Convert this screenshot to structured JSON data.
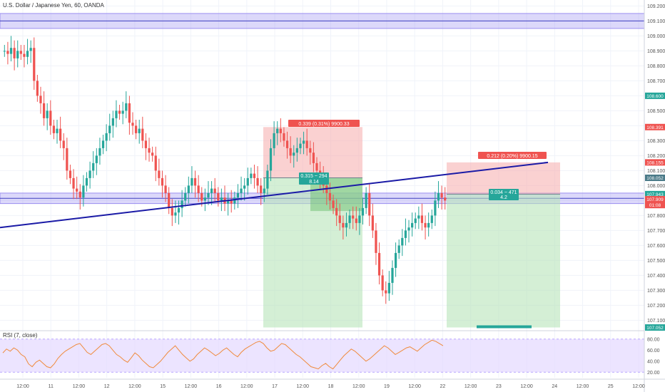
{
  "header": {
    "title": "U.S. Dollar / Japanese Yen, 60, OANDA"
  },
  "rsi": {
    "title": "RSI (7, close)",
    "levels": [
      "80.00",
      "60.00",
      "40.00",
      "20.00"
    ],
    "ticks": [
      80,
      60,
      40,
      20
    ]
  },
  "price_axis": {
    "labels": [
      "109.200",
      "109.100",
      "109.000",
      "108.900",
      "108.800",
      "108.700",
      "108.600",
      "108.500",
      "108.400",
      "108.300",
      "108.200",
      "108.100",
      "108.000",
      "107.900",
      "107.800",
      "107.700",
      "107.600",
      "107.500",
      "107.400",
      "107.300",
      "107.200",
      "107.100"
    ],
    "badges": [
      {
        "text": "108.600",
        "color": "#26a69a"
      },
      {
        "text": "108.391",
        "color": "#ef5350"
      },
      {
        "text": "108.155",
        "color": "#ef5350"
      },
      {
        "text": "108.052",
        "color": "#4a7a88"
      },
      {
        "text": "107.943",
        "color": "#26a69a"
      },
      {
        "text": "107.909",
        "color": "#ef5350"
      },
      {
        "text": "01:08",
        "color": "#ef5350"
      },
      {
        "text": "107.052",
        "color": "#26a69a"
      }
    ]
  },
  "time_axis": {
    "labels": [
      "12:00",
      "11",
      "12:00",
      "12",
      "12:00",
      "15",
      "12:00",
      "16",
      "12:00",
      "17",
      "12:00",
      "18",
      "12:00",
      "19",
      "12:00",
      "22",
      "12:00",
      "23",
      "12:00",
      "24",
      "12:00",
      "25",
      "12:00"
    ]
  },
  "position_labels": [
    {
      "text": "0.339 (0.31%) 9900.33",
      "color": "#ef5350"
    },
    {
      "text": "0.315 ~ 294",
      "color": "#26a69a"
    },
    {
      "text": "8.14",
      "color": "#26a69a"
    },
    {
      "text": "0.212 (0.20%) 9900.15",
      "color": "#ef5350"
    },
    {
      "text": "0.034 ~ 471",
      "color": "#26a69a"
    },
    {
      "text": "4.2",
      "color": "#26a69a"
    }
  ],
  "colors": {
    "up": "#26a69a",
    "down": "#ef5350",
    "trendline": "#1a1aa6",
    "zone": "#9c8ff0",
    "rsi_line": "#f08a3c",
    "rsi_band": "#e4d8ff",
    "stop_zone": "#f6b3b3",
    "target_zone": "#b7e4b9"
  },
  "chart_data": {
    "type": "candlestick",
    "symbol": "U.S. Dollar / Japanese Yen",
    "interval": "60",
    "source": "OANDA",
    "ylim": [
      107.04,
      109.24
    ],
    "zones": [
      {
        "from": 109.05,
        "to": 109.15
      },
      {
        "from": 107.88,
        "to": 107.95
      }
    ],
    "trendline": [
      {
        "t": 0,
        "p": 107.72
      },
      {
        "t": 1,
        "p": 108.155
      }
    ],
    "positions": [
      {
        "entry": 108.052,
        "stop": 108.391,
        "target": 107.052,
        "pnl": 107.83
      },
      {
        "entry": 107.943,
        "stop": 108.155,
        "target": 107.052
      }
    ],
    "close_path": [
      108.9,
      108.88,
      108.92,
      108.85,
      108.9,
      108.88,
      108.86,
      108.9,
      108.92,
      108.7,
      108.6,
      108.55,
      108.45,
      108.5,
      108.4,
      108.35,
      108.38,
      108.3,
      108.25,
      108.1,
      108.05,
      107.98,
      107.96,
      107.92,
      108.0,
      108.05,
      108.1,
      108.15,
      108.2,
      108.25,
      108.3,
      108.35,
      108.4,
      108.45,
      108.5,
      108.48,
      108.5,
      108.55,
      108.42,
      108.4,
      108.35,
      108.38,
      108.3,
      108.25,
      108.22,
      108.2,
      108.1,
      108.05,
      108.0,
      107.95,
      107.85,
      107.8,
      107.82,
      107.85,
      107.9,
      107.95,
      108.0,
      108.05,
      108.0,
      107.95,
      107.9,
      107.92,
      107.95,
      107.98,
      107.95,
      107.9,
      107.92,
      107.88,
      107.9,
      107.88,
      107.92,
      107.95,
      107.98,
      108.0,
      108.05,
      108.08,
      108.05,
      108.0,
      107.95,
      107.98,
      108.1,
      108.25,
      108.35,
      108.38,
      108.35,
      108.3,
      108.25,
      108.2,
      108.22,
      108.25,
      108.28,
      108.3,
      108.25,
      108.22,
      108.15,
      108.1,
      108.05,
      108.0,
      107.95,
      107.9,
      107.85,
      107.8,
      107.75,
      107.72,
      107.75,
      107.8,
      107.78,
      107.75,
      107.8,
      107.85,
      107.95,
      107.8,
      107.7,
      107.55,
      107.4,
      107.3,
      107.28,
      107.35,
      107.45,
      107.55,
      107.6,
      107.65,
      107.7,
      107.72,
      107.75,
      107.78,
      107.8,
      107.75,
      107.72,
      107.75,
      107.8,
      107.9,
      107.95,
      107.92,
      107.9
    ],
    "rsi": [
      55,
      62,
      58,
      64,
      60,
      52,
      48,
      35,
      30,
      38,
      42,
      36,
      30,
      28,
      35,
      45,
      52,
      58,
      62,
      66,
      70,
      72,
      64,
      56,
      52,
      58,
      64,
      70,
      72,
      68,
      60,
      52,
      48,
      42,
      38,
      46,
      55,
      50,
      42,
      36,
      30,
      28,
      34,
      40,
      48,
      56,
      62,
      68,
      60,
      52,
      46,
      40,
      44,
      52,
      58,
      64,
      60,
      55,
      50,
      54,
      60,
      64,
      58,
      52,
      48,
      56,
      62,
      66,
      70,
      74,
      76,
      72,
      64,
      58,
      60,
      66,
      72,
      70,
      64,
      58,
      52,
      48,
      42,
      36,
      30,
      28,
      26,
      32,
      36,
      30,
      26,
      34,
      42,
      50,
      56,
      62,
      58,
      52,
      46,
      40,
      44,
      50,
      56,
      62,
      68,
      64,
      58,
      52,
      56,
      60,
      64,
      66,
      62,
      58,
      64,
      70,
      74,
      78,
      76,
      72,
      68
    ]
  }
}
